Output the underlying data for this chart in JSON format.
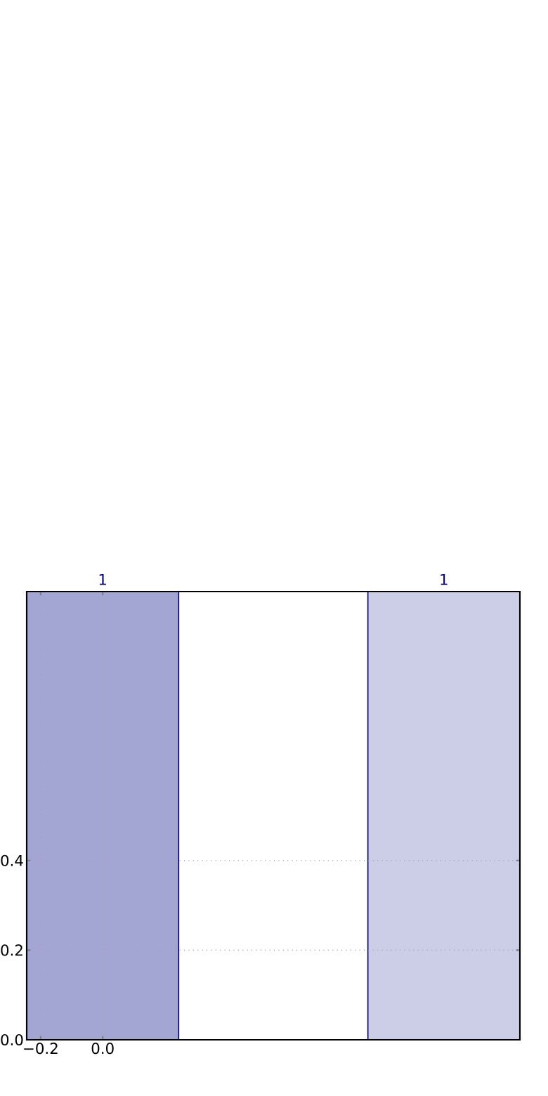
{
  "chart_data": {
    "type": "bar",
    "x": [
      0,
      1.1
    ],
    "values": [
      1,
      1
    ],
    "colors": [
      "#a3a5d3",
      "#cccde6"
    ],
    "xlim": [
      -0.245,
      1.345
    ],
    "ylim": [
      0,
      1
    ],
    "xticks": [
      {
        "value": -0.2,
        "label": "−0.2"
      },
      {
        "value": 0,
        "label": "0.0"
      }
    ],
    "yticks": [
      {
        "value": 0,
        "label": "0.0"
      },
      {
        "value": 0.2,
        "label": "0.2"
      },
      {
        "value": 0.4,
        "label": "0.4"
      }
    ],
    "grid": true,
    "data_labels": true
  }
}
